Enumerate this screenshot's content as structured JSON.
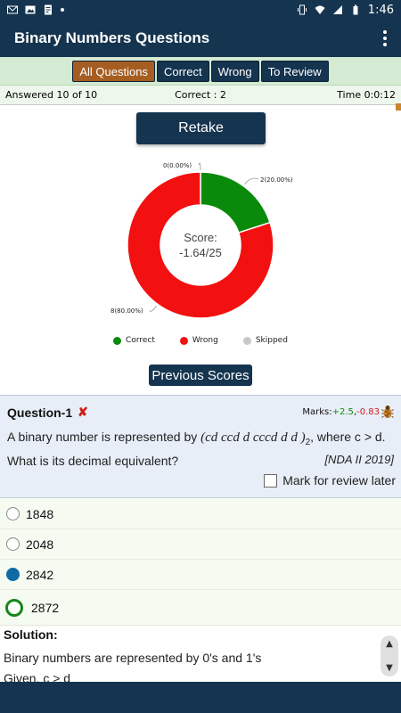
{
  "status": {
    "time": "1:46"
  },
  "appbar": {
    "title": "Binary Numbers Questions"
  },
  "filters": [
    {
      "label": "All Questions",
      "active": true
    },
    {
      "label": "Correct",
      "active": false
    },
    {
      "label": "Wrong",
      "active": false
    },
    {
      "label": "To Review",
      "active": false
    }
  ],
  "info": {
    "answered": "Answered 10 of 10",
    "correct": "Correct : 2",
    "time": "Time 0:0:12"
  },
  "retake_label": "Retake",
  "chart_data": {
    "type": "pie",
    "categories": [
      "Correct",
      "Wrong",
      "Skipped"
    ],
    "values": [
      2,
      8,
      0
    ],
    "slice_labels": [
      "2(20.00%)",
      "8(80.00%)",
      "0(0.00%)"
    ],
    "colors": [
      "#0a8a0a",
      "#f21010",
      "#c8c8c8"
    ],
    "center_text": [
      "Score:",
      "-1.64/25"
    ],
    "legend_position": "bottom"
  },
  "previous_scores_label": "Previous Scores",
  "question": {
    "title": "Question-1",
    "marks_label": "Marks:",
    "marks_plus": "+2.5",
    "marks_sep": ",",
    "marks_minus": "-0.83",
    "text_before": "A binary number is represented by ",
    "math": "(cd ccd d cccd d d )",
    "math_sub": "2",
    "text_after": ", where c > d. What is its decimal equivalent?",
    "source": "[NDA II 2019]",
    "review_label": "Mark for review later"
  },
  "options": [
    "1848",
    "2048",
    "2842",
    "2872"
  ],
  "solution": {
    "title": "Solution:",
    "line1": "Binary numbers are represented by 0's and 1's",
    "line2": "Given, c > d"
  }
}
